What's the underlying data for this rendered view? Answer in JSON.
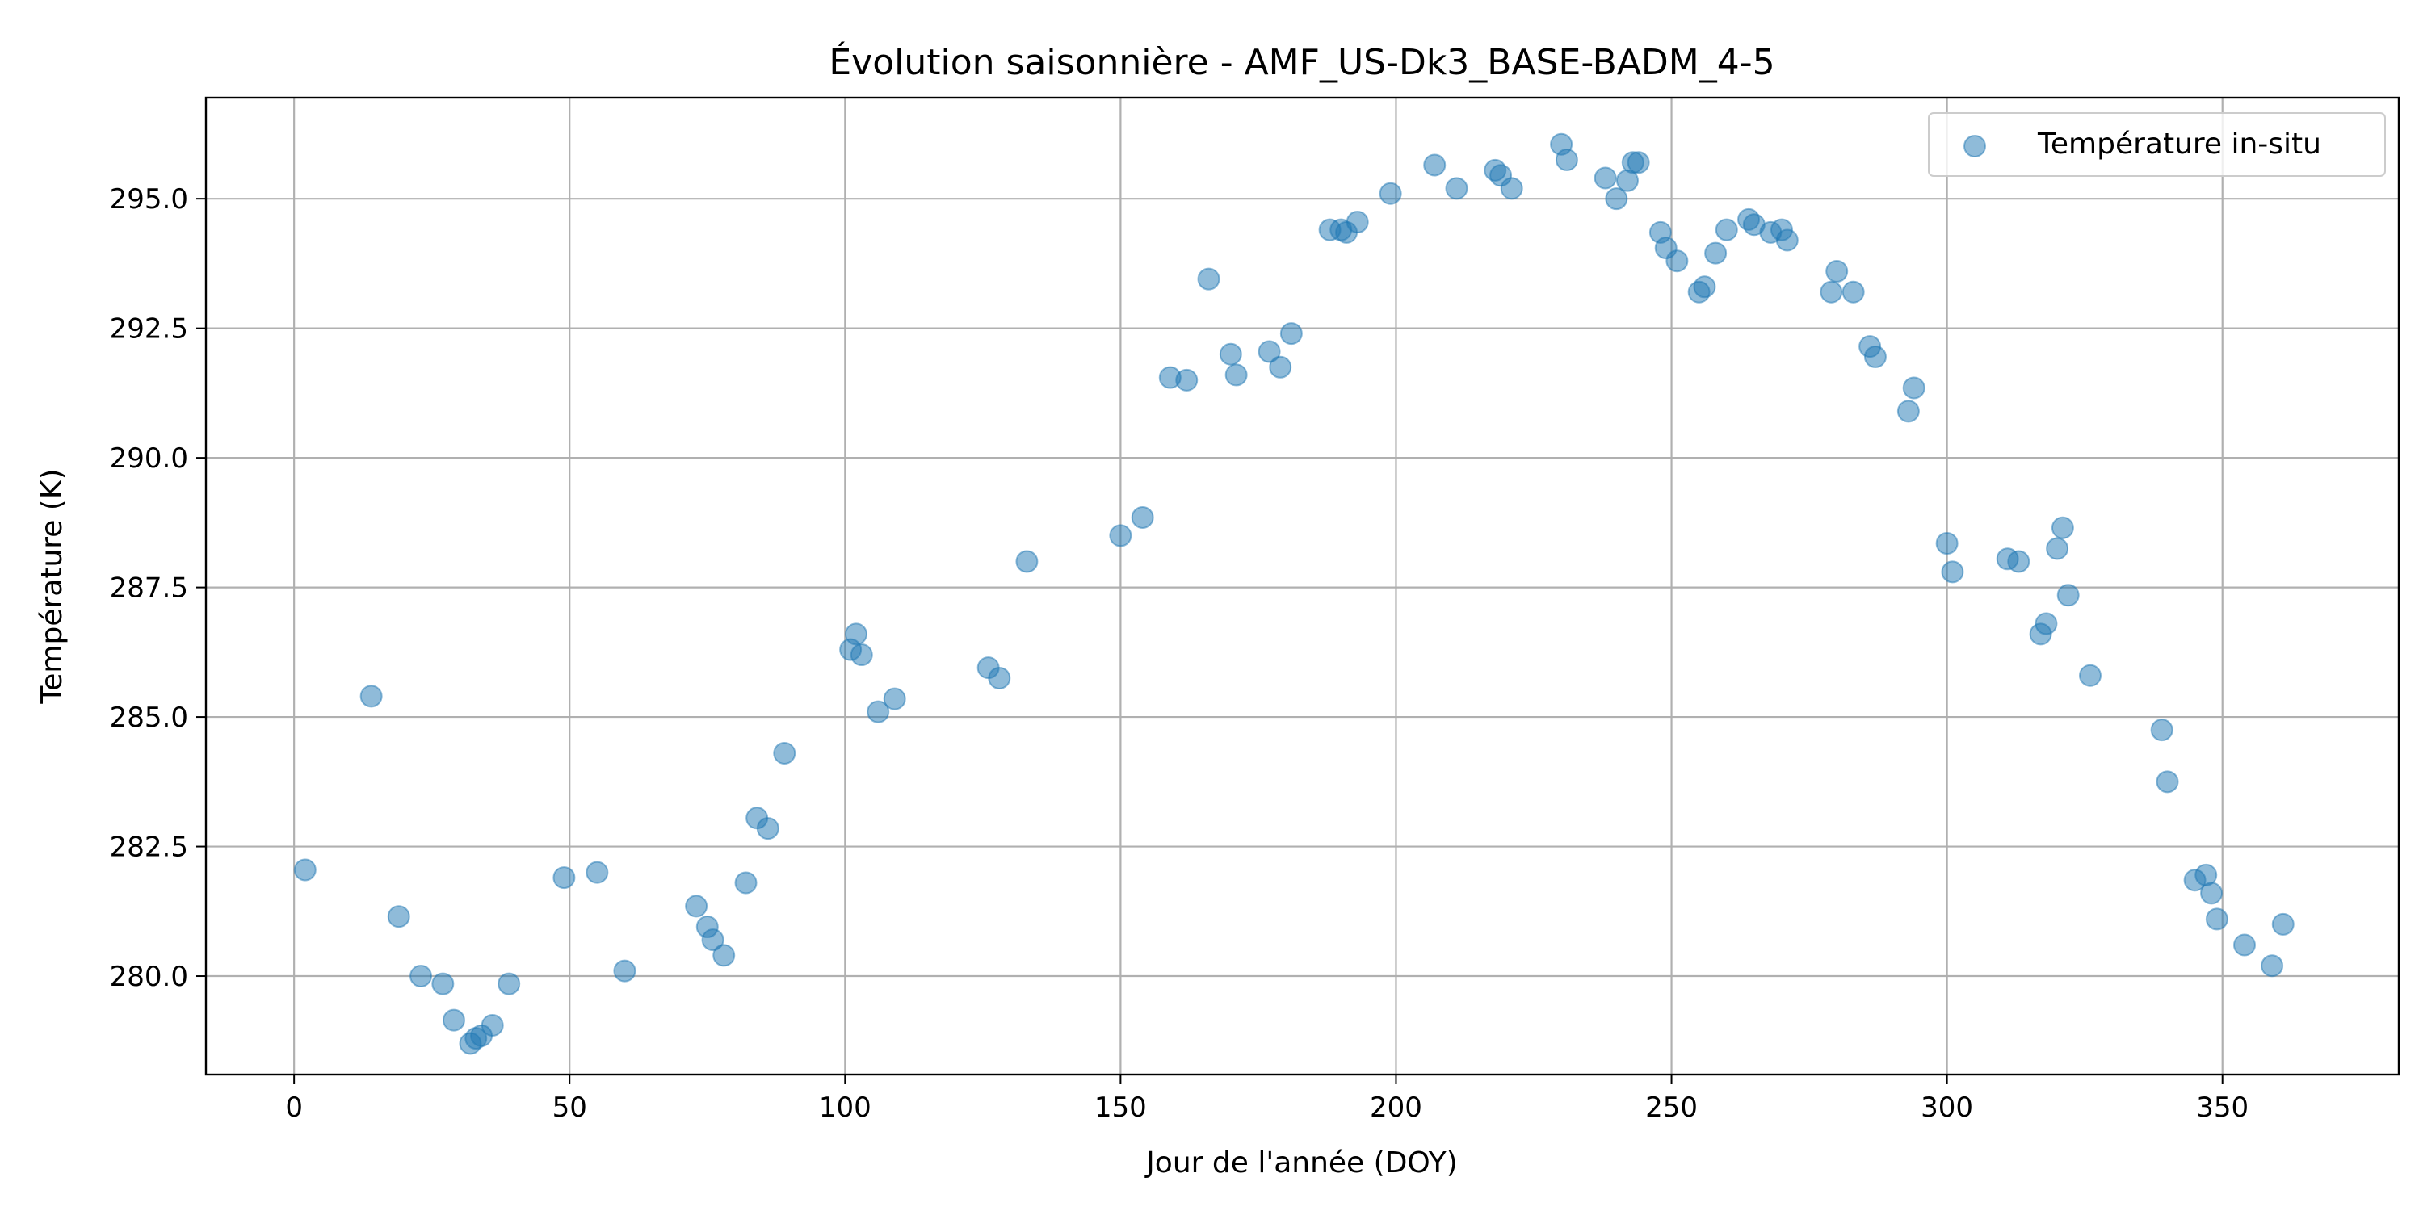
{
  "chart_data": {
    "type": "scatter",
    "title": "Évolution saisonnière - AMF_US-Dk3_BASE-BADM_4-5",
    "xlabel": "Jour de l'année (DOY)",
    "ylabel": "Température (K)",
    "xlim": [
      -16,
      382
    ],
    "ylim": [
      278.1,
      296.95
    ],
    "xticks": [
      0,
      50,
      100,
      150,
      200,
      250,
      300,
      350
    ],
    "yticks": [
      280.0,
      282.5,
      285.0,
      287.5,
      290.0,
      292.5,
      295.0
    ],
    "grid": true,
    "legend_position": "top-right",
    "color": "#1f77b4",
    "series": [
      {
        "name": "Température in-situ",
        "points": [
          [
            2,
            282.05
          ],
          [
            14,
            285.4
          ],
          [
            19,
            281.15
          ],
          [
            23,
            280.0
          ],
          [
            27,
            279.85
          ],
          [
            29,
            279.15
          ],
          [
            32,
            278.7
          ],
          [
            33,
            278.8
          ],
          [
            34,
            278.85
          ],
          [
            36,
            279.05
          ],
          [
            39,
            279.85
          ],
          [
            49,
            281.9
          ],
          [
            55,
            282.0
          ],
          [
            60,
            280.1
          ],
          [
            73,
            281.35
          ],
          [
            75,
            280.95
          ],
          [
            76,
            280.7
          ],
          [
            78,
            280.4
          ],
          [
            82,
            281.8
          ],
          [
            84,
            283.05
          ],
          [
            86,
            282.85
          ],
          [
            89,
            284.3
          ],
          [
            101,
            286.3
          ],
          [
            102,
            286.6
          ],
          [
            103,
            286.2
          ],
          [
            106,
            285.1
          ],
          [
            109,
            285.35
          ],
          [
            126,
            285.95
          ],
          [
            128,
            285.75
          ],
          [
            133,
            288.0
          ],
          [
            150,
            288.5
          ],
          [
            154,
            288.85
          ],
          [
            159,
            291.55
          ],
          [
            162,
            291.5
          ],
          [
            166,
            293.45
          ],
          [
            170,
            292.0
          ],
          [
            171,
            291.6
          ],
          [
            177,
            292.05
          ],
          [
            179,
            291.75
          ],
          [
            181,
            292.4
          ],
          [
            188,
            294.4
          ],
          [
            190,
            294.4
          ],
          [
            191,
            294.35
          ],
          [
            193,
            294.55
          ],
          [
            199,
            295.1
          ],
          [
            207,
            295.65
          ],
          [
            211,
            295.2
          ],
          [
            218,
            295.55
          ],
          [
            219,
            295.45
          ],
          [
            221,
            295.2
          ],
          [
            230,
            296.05
          ],
          [
            231,
            295.75
          ],
          [
            238,
            295.4
          ],
          [
            240,
            295.0
          ],
          [
            242,
            295.35
          ],
          [
            243,
            295.7
          ],
          [
            244,
            295.7
          ],
          [
            248,
            294.35
          ],
          [
            249,
            294.05
          ],
          [
            251,
            293.8
          ],
          [
            255,
            293.2
          ],
          [
            256,
            293.3
          ],
          [
            258,
            293.95
          ],
          [
            260,
            294.4
          ],
          [
            264,
            294.6
          ],
          [
            265,
            294.5
          ],
          [
            268,
            294.35
          ],
          [
            270,
            294.4
          ],
          [
            271,
            294.2
          ],
          [
            279,
            293.2
          ],
          [
            280,
            293.6
          ],
          [
            283,
            293.2
          ],
          [
            286,
            292.15
          ],
          [
            287,
            291.95
          ],
          [
            293,
            290.9
          ],
          [
            294,
            291.35
          ],
          [
            300,
            288.35
          ],
          [
            301,
            287.8
          ],
          [
            311,
            288.05
          ],
          [
            313,
            288.0
          ],
          [
            317,
            286.6
          ],
          [
            318,
            286.8
          ],
          [
            320,
            288.25
          ],
          [
            321,
            288.65
          ],
          [
            322,
            287.35
          ],
          [
            326,
            285.8
          ],
          [
            339,
            284.75
          ],
          [
            340,
            283.75
          ],
          [
            345,
            281.85
          ],
          [
            347,
            281.95
          ],
          [
            348,
            281.6
          ],
          [
            349,
            281.1
          ],
          [
            354,
            280.6
          ],
          [
            359,
            280.2
          ],
          [
            361,
            281.0
          ]
        ]
      }
    ]
  }
}
